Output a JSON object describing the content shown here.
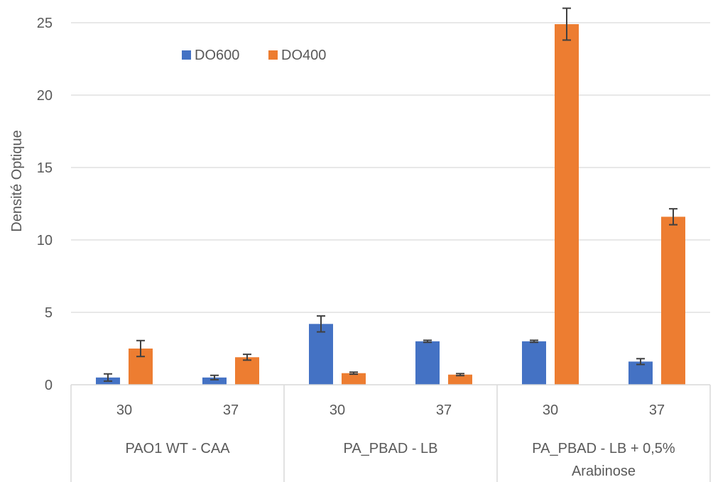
{
  "chart_data": {
    "type": "bar",
    "title": "",
    "xlabel": "",
    "ylabel": "Densité Optique",
    "ylim": [
      0,
      25
    ],
    "yticks": [
      0,
      5,
      10,
      15,
      20,
      25
    ],
    "grid": true,
    "legend_position": "top-left",
    "groups": [
      {
        "label": [
          "PAO1 WT - CAA"
        ],
        "categories": [
          "30",
          "37"
        ]
      },
      {
        "label": [
          "PA_PBAD - LB"
        ],
        "categories": [
          "30",
          "37"
        ]
      },
      {
        "label": [
          "PA_PBAD - LB + 0,5%",
          "Arabinose"
        ],
        "categories": [
          "30",
          "37"
        ]
      }
    ],
    "series": [
      {
        "name": "DO600",
        "color": "#4472C4",
        "values": [
          0.5,
          0.5,
          4.2,
          3.0,
          3.0,
          1.6
        ],
        "errors": [
          0.25,
          0.15,
          0.55,
          0.07,
          0.07,
          0.2
        ]
      },
      {
        "name": "DO400",
        "color": "#ED7D31",
        "values": [
          2.5,
          1.9,
          0.8,
          0.7,
          24.9,
          11.6
        ],
        "errors": [
          0.55,
          0.2,
          0.07,
          0.07,
          1.1,
          0.55
        ]
      }
    ]
  }
}
